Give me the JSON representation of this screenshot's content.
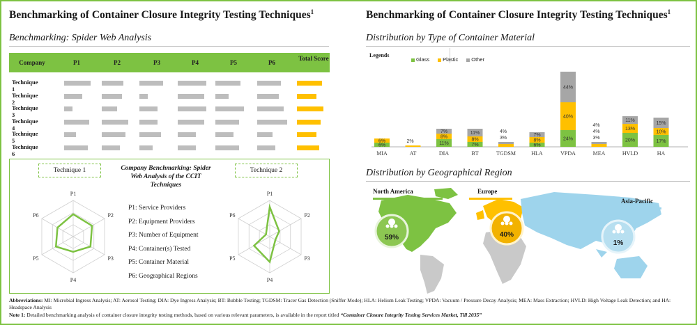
{
  "left": {
    "title": "Benchmarking of Container Closure Integrity Testing Techniques",
    "title_sup": "1",
    "subtitle": "Benchmarking: Spider Web Analysis",
    "table": {
      "headers": [
        "Company",
        "P1",
        "P2",
        "P3",
        "P4",
        "P5",
        "P6",
        "Total Score"
      ],
      "rows": [
        {
          "label": "Technique 1",
          "values": [
            0.8,
            0.65,
            0.7,
            0.85,
            0.75,
            0.7
          ],
          "total": 0.9
        },
        {
          "label": "Technique 2",
          "values": [
            0.55,
            0.6,
            0.25,
            0.8,
            0.4,
            0.65
          ],
          "total": 0.7
        },
        {
          "label": "Technique 3",
          "values": [
            0.25,
            0.45,
            0.55,
            0.85,
            0.85,
            0.8
          ],
          "total": 0.95
        },
        {
          "label": "Technique 4",
          "values": [
            0.75,
            0.8,
            0.55,
            0.8,
            0.7,
            0.9
          ],
          "total": 0.85
        },
        {
          "label": "Technique 5",
          "values": [
            0.35,
            0.7,
            0.65,
            0.55,
            0.55,
            0.45
          ],
          "total": 0.7
        },
        {
          "label": "Technique 6",
          "values": [
            0.7,
            0.55,
            0.4,
            0.55,
            0.7,
            0.55
          ],
          "total": 0.8
        }
      ]
    },
    "spider": {
      "technique1_label": "Technique 1",
      "technique2_label": "Technique 2",
      "center_title": "Company Benchmarking: Spider Web Analysis of the CCIT Techniques",
      "axes": [
        "P1",
        "P2",
        "P3",
        "P4",
        "P5",
        "P6"
      ],
      "legend": [
        "P1: Service Providers",
        "P2: Equipment Providers",
        "P3: Number of Equipment",
        "P4: Container(s) Tested",
        "P5: Container Material",
        "P6: Geographical Regions"
      ],
      "technique1_values": [
        0.62,
        0.6,
        0.55,
        0.42,
        0.55,
        0.5
      ],
      "technique2_values": [
        0.82,
        0.3,
        0.18,
        0.7,
        0.5,
        0.12
      ]
    }
  },
  "right": {
    "title": "Benchmarking of Container Closure Integrity Testing Techniques",
    "title_sup": "1",
    "subtitle": "Distribution by Type of Container Material",
    "subtitle2": "Distribution by Geographical Region",
    "legend_title": "Legends",
    "regions": {
      "na": {
        "name": "North America",
        "value": "59%"
      },
      "eu": {
        "name": "Europe",
        "value": "40%"
      },
      "ap": {
        "name": "Asia-Pacific",
        "value": "1%"
      }
    }
  },
  "chart_data": [
    {
      "type": "bar",
      "stacked": true,
      "categories": [
        "MIA",
        "AT",
        "DIA",
        "BT",
        "TGDSM",
        "HLA",
        "VPDA",
        "MEA",
        "HVLD",
        "HA"
      ],
      "series": [
        {
          "name": "Glass",
          "color": "#7dc242",
          "values": [
            6,
            0,
            11,
            7,
            0,
            6,
            24,
            0,
            20,
            17
          ],
          "labels": [
            "6%",
            "",
            "11%",
            "7%",
            "",
            "6%",
            "24%",
            "",
            "20%",
            "17%"
          ]
        },
        {
          "name": "Plastic",
          "color": "#ffc000",
          "values": [
            6,
            2,
            8,
            8,
            4,
            8,
            40,
            4,
            13,
            10
          ],
          "labels": [
            "6%",
            "2%",
            "8%",
            "8%",
            "4%",
            "8%",
            "40%",
            "4%",
            "13%",
            "10%"
          ]
        },
        {
          "name": "Other",
          "color": "#a6a6a6",
          "values": [
            0,
            0,
            7,
            11,
            3,
            7,
            44,
            3,
            11,
            15
          ],
          "labels": [
            "",
            "",
            "7%",
            "11%",
            "3%",
            "7%",
            "44%",
            "3%",
            "11%",
            "15%"
          ]
        }
      ],
      "extra_labels": [
        "",
        "",
        "",
        "",
        "",
        "",
        "",
        "4%",
        "",
        ""
      ]
    },
    {
      "type": "map",
      "regions": [
        {
          "name": "North America",
          "value": 59
        },
        {
          "name": "Europe",
          "value": 40
        },
        {
          "name": "Asia-Pacific",
          "value": 1
        }
      ]
    }
  ],
  "footer": {
    "abbr_label": "Abbreviations:",
    "abbr_text": " MI: Microbial Ingress Analysis; AT: Aerosol Testing; DIA: Dye Ingress Analysis; BT: Bubble Testing; TGDSM: Tracer Gas Detection (Sniffer Mode); HLA: Helium Leak Testing; VPDA: Vacuum / Pressure Decay Analysis; MEA: Mass Extraction; HVLD: High Voltage Leak Detection; and HA: Headspace Analysis",
    "note_label": "Note 1:",
    "note_text": " Detailed benchmarking analysis of container closure integrity testing methods, based on various relevant parameters, is available in the report titled ",
    "note_title": "“Container Closure Integrity Testing Services Market, Till 2035”"
  },
  "colors": {
    "green": "#7dc242",
    "yellow": "#ffc000",
    "grey": "#bdbdbd",
    "dark_grey": "#a6a6a6",
    "blue": "#9ed4ec"
  }
}
